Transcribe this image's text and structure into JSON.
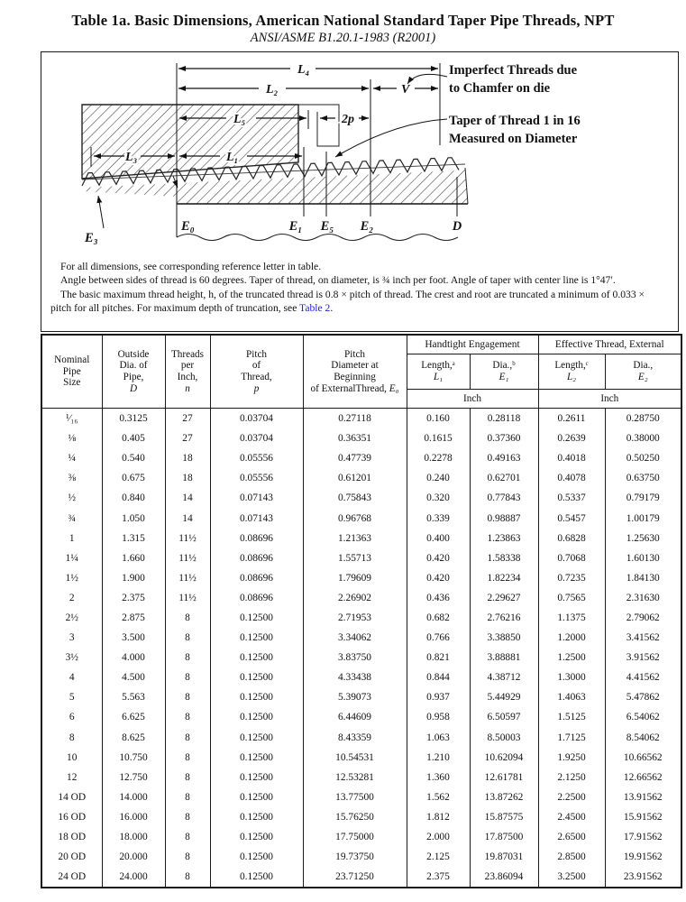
{
  "title": "Table 1a.  Basic Dimensions, American National Standard Taper Pipe Threads, NPT",
  "subtitle": "ANSI/ASME B1.20.1-1983 (R2001)",
  "diagram": {
    "dim_labels": {
      "l4": "L₄",
      "l2": "L₂",
      "v": "V",
      "l5": "L₅",
      "two_p": "2p",
      "l3": "L₃",
      "l1": "L₁"
    },
    "ref_labels": {
      "e3": "E₃",
      "e0": "E₀",
      "e1": "E₁",
      "e5": "E₅",
      "e2": "E₂",
      "d": "D"
    },
    "callouts": {
      "imperfect1": "Imperfect Threads due",
      "imperfect2": "to Chamfer on die",
      "taper1": "Taper of Thread 1 in 16",
      "taper2": "Measured on Diameter"
    }
  },
  "notes": {
    "line1": "For all dimensions, see  corresponding reference letter in table.",
    "line2": "Angle between sides of thread is 60 degrees. Taper of thread, on diameter, is ¾ inch per foot. Angle of taper with center line is 1°47′.",
    "line3_pre": "The basic maximum thread height, h, of the truncated thread is 0.8 × pitch of thread. The crest and root are truncated a minimum of 0.033 × pitch for all pitches. For maximum depth of truncation, see ",
    "line3_link": "Table 2",
    "line3_post": "."
  },
  "table": {
    "col_headers": {
      "nominal": "Nominal\nPipe\nSize",
      "outside": {
        "lines": "Outside\nDia. of\nPipe,",
        "sym": "D"
      },
      "threads": {
        "lines": "Threads\nper\nInch,",
        "sym": "n"
      },
      "pitch": {
        "lines": "Pitch\nof\nThread,",
        "sym": "p"
      },
      "pitch_dia": {
        "lines": "Pitch\nDiameter at\nBeginning\nof External",
        "last": "Thread, ",
        "sym": "E₀"
      }
    },
    "groups": [
      {
        "title": "Handtight Engagement",
        "cols": [
          {
            "label": "Length,ᵃ",
            "sym": "L₁"
          },
          {
            "label": "Dia.,ᵇ",
            "sym": "E₁"
          }
        ],
        "unit": "Inch"
      },
      {
        "title": "Effective Thread, External",
        "cols": [
          {
            "label": "Length,ᶜ",
            "sym": "L₂"
          },
          {
            "label": "Dia.,",
            "sym": "E₂"
          }
        ],
        "unit": "Inch"
      }
    ],
    "rows": [
      [
        "¹⁄₁₆",
        "0.3125",
        "27",
        "0.03704",
        "0.27118",
        "0.160",
        "0.28118",
        "0.2611",
        "0.28750"
      ],
      [
        "⅛",
        "0.405",
        "27",
        "0.03704",
        "0.36351",
        "0.1615",
        "0.37360",
        "0.2639",
        "0.38000"
      ],
      [
        "¼",
        "0.540",
        "18",
        "0.05556",
        "0.47739",
        "0.2278",
        "0.49163",
        "0.4018",
        "0.50250"
      ],
      [
        "⅜",
        "0.675",
        "18",
        "0.05556",
        "0.61201",
        "0.240",
        "0.62701",
        "0.4078",
        "0.63750"
      ],
      [
        "½",
        "0.840",
        "14",
        "0.07143",
        "0.75843",
        "0.320",
        "0.77843",
        "0.5337",
        "0.79179"
      ],
      [
        "¾",
        "1.050",
        "14",
        "0.07143",
        "0.96768",
        "0.339",
        "0.98887",
        "0.5457",
        "1.00179"
      ],
      [
        "1",
        "1.315",
        "11½",
        "0.08696",
        "1.21363",
        "0.400",
        "1.23863",
        "0.6828",
        "1.25630"
      ],
      [
        "1¼",
        "1.660",
        "11½",
        "0.08696",
        "1.55713",
        "0.420",
        "1.58338",
        "0.7068",
        "1.60130"
      ],
      [
        "1½",
        "1.900",
        "11½",
        "0.08696",
        "1.79609",
        "0.420",
        "1.82234",
        "0.7235",
        "1.84130"
      ],
      [
        "2",
        "2.375",
        "11½",
        "0.08696",
        "2.26902",
        "0.436",
        "2.29627",
        "0.7565",
        "2.31630"
      ],
      [
        "2½",
        "2.875",
        "8",
        "0.12500",
        "2.71953",
        "0.682",
        "2.76216",
        "1.1375",
        "2.79062"
      ],
      [
        "3",
        "3.500",
        "8",
        "0.12500",
        "3.34062",
        "0.766",
        "3.38850",
        "1.2000",
        "3.41562"
      ],
      [
        "3½",
        "4.000",
        "8",
        "0.12500",
        "3.83750",
        "0.821",
        "3.88881",
        "1.2500",
        "3.91562"
      ],
      [
        "4",
        "4.500",
        "8",
        "0.12500",
        "4.33438",
        "0.844",
        "4.38712",
        "1.3000",
        "4.41562"
      ],
      [
        "5",
        "5.563",
        "8",
        "0.12500",
        "5.39073",
        "0.937",
        "5.44929",
        "1.4063",
        "5.47862"
      ],
      [
        "6",
        "6.625",
        "8",
        "0.12500",
        "6.44609",
        "0.958",
        "6.50597",
        "1.5125",
        "6.54062"
      ],
      [
        "8",
        "8.625",
        "8",
        "0.12500",
        "8.43359",
        "1.063",
        "8.50003",
        "1.7125",
        "8.54062"
      ],
      [
        "10",
        "10.750",
        "8",
        "0.12500",
        "10.54531",
        "1.210",
        "10.62094",
        "1.9250",
        "10.66562"
      ],
      [
        "12",
        "12.750",
        "8",
        "0.12500",
        "12.53281",
        "1.360",
        "12.61781",
        "2.1250",
        "12.66562"
      ],
      [
        "14 OD",
        "14.000",
        "8",
        "0.12500",
        "13.77500",
        "1.562",
        "13.87262",
        "2.2500",
        "13.91562"
      ],
      [
        "16 OD",
        "16.000",
        "8",
        "0.12500",
        "15.76250",
        "1.812",
        "15.87575",
        "2.4500",
        "15.91562"
      ],
      [
        "18 OD",
        "18.000",
        "8",
        "0.12500",
        "17.75000",
        "2.000",
        "17.87500",
        "2.6500",
        "17.91562"
      ],
      [
        "20 OD",
        "20.000",
        "8",
        "0.12500",
        "19.73750",
        "2.125",
        "19.87031",
        "2.8500",
        "19.91562"
      ],
      [
        "24 OD",
        "24.000",
        "8",
        "0.12500",
        "23.71250",
        "2.375",
        "23.86094",
        "3.2500",
        "23.91562"
      ]
    ]
  }
}
